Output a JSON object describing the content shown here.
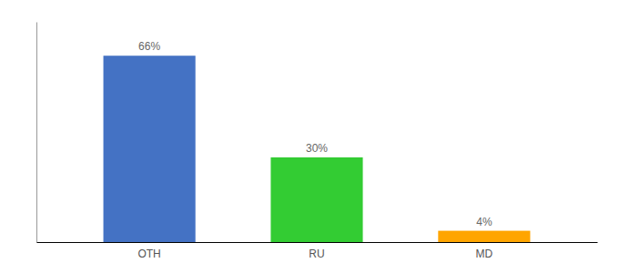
{
  "chart_data": {
    "type": "bar",
    "categories": [
      "OTH",
      "RU",
      "MD"
    ],
    "values": [
      66,
      30,
      4
    ],
    "value_labels": [
      "66%",
      "30%",
      "4%"
    ],
    "data_labels": true,
    "colors": [
      "#4472c4",
      "#33cc33",
      "#ffa500"
    ],
    "ylim": [
      0,
      78
    ],
    "tick_labels": "x"
  }
}
